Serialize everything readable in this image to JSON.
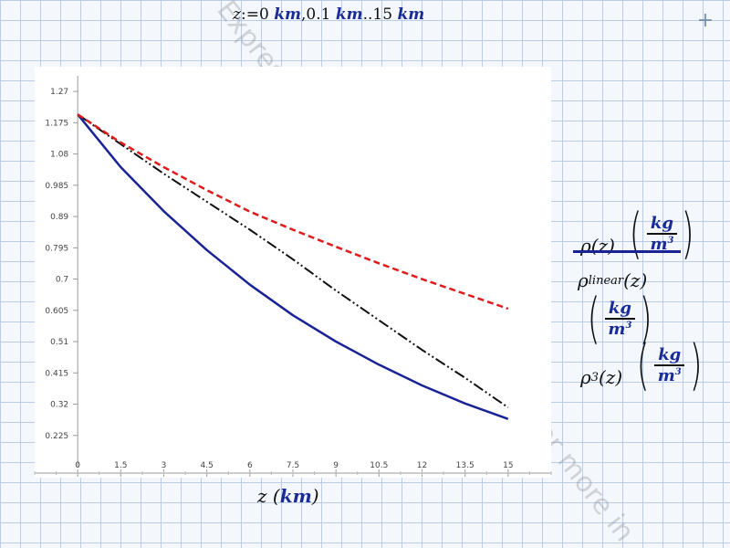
{
  "header": {
    "var": "z",
    "assign": ":=",
    "start": "0",
    "step": "0.1",
    "range_op": "..",
    "end": "15",
    "unit": "km"
  },
  "watermarks": [
    "Expres",
    "for more in"
  ],
  "icons": {
    "add": "plus-icon"
  },
  "colors": {
    "rho": "#1a2396",
    "rho_linear": "#111111",
    "rho_3": "#e01b1b",
    "unit": "#1a2c96"
  },
  "legend": [
    {
      "symbol": "ρ",
      "subscript": "",
      "arg": "(z)",
      "unit_num": "kg",
      "unit_den": "m",
      "unit_den_exp": "3"
    },
    {
      "symbol": "ρ",
      "subscript": "linear",
      "arg": "(z)",
      "unit_num": "kg",
      "unit_den": "m",
      "unit_den_exp": "3"
    },
    {
      "symbol": "ρ",
      "subscript": "3",
      "arg": "(z)",
      "unit_num": "kg",
      "unit_den": "m",
      "unit_den_exp": "3"
    }
  ],
  "chart_data": {
    "type": "line",
    "xlabel_var": "z",
    "xlabel_unit": "km",
    "xlim": [
      -1.5,
      16.5
    ],
    "ylim": [
      0.13,
      1.3175
    ],
    "xticks": [
      "0",
      "1.5",
      "3",
      "4.5",
      "6",
      "7.5",
      "9",
      "10.5",
      "12",
      "13.5",
      "15"
    ],
    "yticks": [
      "1.27",
      "1.175",
      "1.08",
      "0.985",
      "0.89",
      "0.795",
      "0.7",
      "0.605",
      "0.51",
      "0.415",
      "0.32",
      "0.225"
    ],
    "x": [
      0,
      1.5,
      3,
      4.5,
      6,
      7.5,
      9,
      10.5,
      12,
      13.5,
      15
    ],
    "series": [
      {
        "key": "rho",
        "style": "solid",
        "values": [
          1.2,
          1.04,
          0.906,
          0.788,
          0.683,
          0.59,
          0.51,
          0.44,
          0.377,
          0.322,
          0.275
        ]
      },
      {
        "key": "rho_linear",
        "style": "dashdotdot",
        "values": [
          1.2,
          1.11,
          1.02,
          0.935,
          0.85,
          0.76,
          0.665,
          0.575,
          0.485,
          0.4,
          0.31
        ]
      },
      {
        "key": "rho_3",
        "style": "dashed",
        "values": [
          1.2,
          1.115,
          1.04,
          0.97,
          0.905,
          0.85,
          0.798,
          0.748,
          0.7,
          0.655,
          0.61
        ]
      }
    ],
    "grid": false,
    "legend_position": "right"
  }
}
